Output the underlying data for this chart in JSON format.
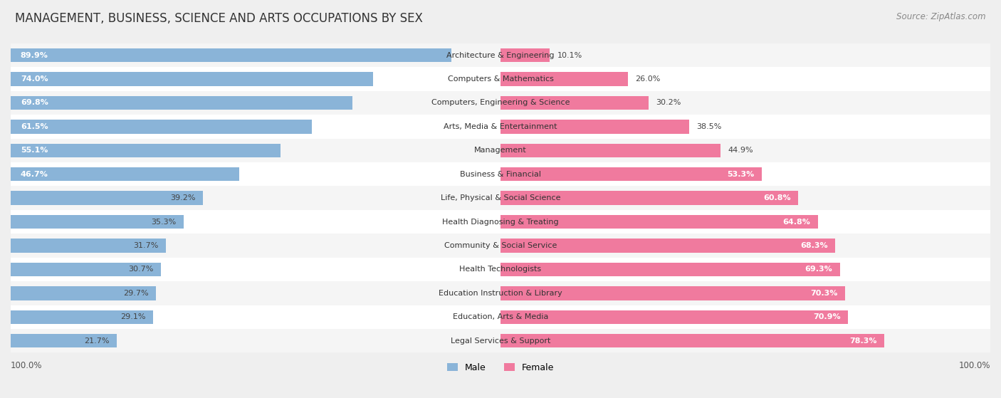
{
  "title": "MANAGEMENT, BUSINESS, SCIENCE AND ARTS OCCUPATIONS BY SEX",
  "source": "Source: ZipAtlas.com",
  "categories": [
    "Architecture & Engineering",
    "Computers & Mathematics",
    "Computers, Engineering & Science",
    "Arts, Media & Entertainment",
    "Management",
    "Business & Financial",
    "Life, Physical & Social Science",
    "Health Diagnosing & Treating",
    "Community & Social Service",
    "Health Technologists",
    "Education Instruction & Library",
    "Education, Arts & Media",
    "Legal Services & Support"
  ],
  "male_pct": [
    89.9,
    74.0,
    69.8,
    61.5,
    55.1,
    46.7,
    39.2,
    35.3,
    31.7,
    30.7,
    29.7,
    29.1,
    21.7
  ],
  "female_pct": [
    10.1,
    26.0,
    30.2,
    38.5,
    44.9,
    53.3,
    60.8,
    64.8,
    68.3,
    69.3,
    70.3,
    70.9,
    78.3
  ],
  "male_color": "#8ab4d8",
  "female_color": "#f07a9e",
  "bg_color": "#efefef",
  "row_bg_even": "#f5f5f5",
  "row_bg_odd": "#ffffff",
  "title_fontsize": 12,
  "source_fontsize": 8.5,
  "label_fontsize": 8,
  "cat_fontsize": 8,
  "bar_height": 0.58,
  "inside_label_threshold": 55,
  "female_inside_threshold": 55
}
